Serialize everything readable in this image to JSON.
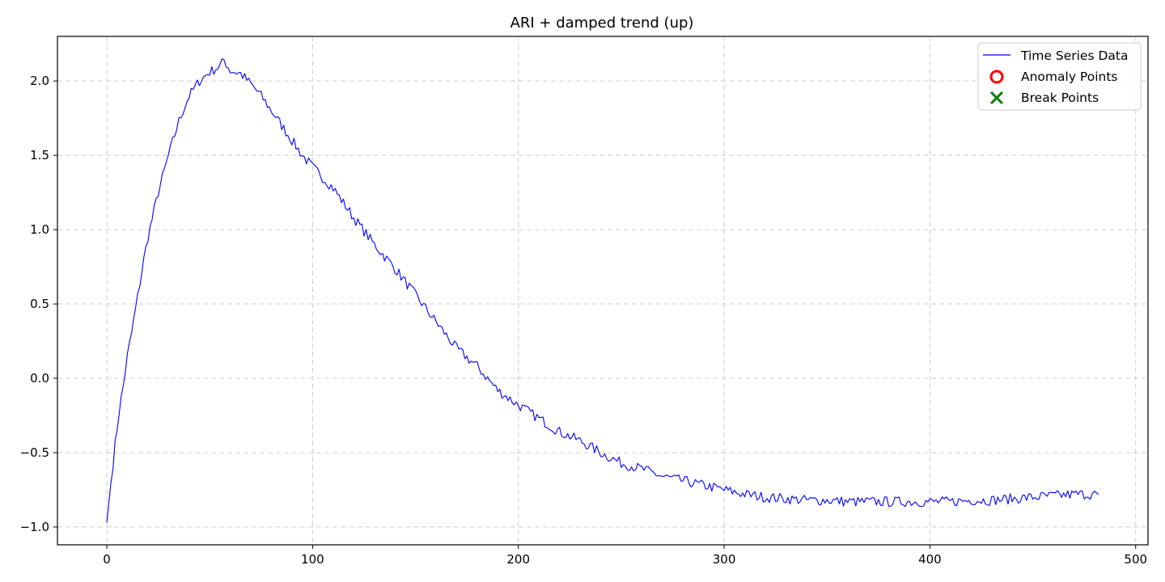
{
  "chart_data": {
    "type": "line",
    "title": "ARI + damped trend (up)",
    "xlabel": "",
    "ylabel": "",
    "xlim": [
      -24,
      506
    ],
    "ylim": [
      -1.12,
      2.3
    ],
    "x_ticks": [
      0,
      100,
      200,
      300,
      400,
      500
    ],
    "x_tick_labels": [
      "0",
      "100",
      "200",
      "300",
      "400",
      "500"
    ],
    "y_ticks": [
      -1.0,
      -0.5,
      0.0,
      0.5,
      1.0,
      1.5,
      2.0
    ],
    "y_tick_labels": [
      "−1.0",
      "−0.5",
      "0.0",
      "0.5",
      "1.0",
      "1.5",
      "2.0"
    ],
    "grid": true,
    "legend_position": "top-right",
    "series": [
      {
        "name": "Time Series Data",
        "color": "#0000ff",
        "x": [
          0,
          2,
          4,
          6,
          8,
          10,
          12,
          15,
          18,
          20,
          25,
          30,
          35,
          40,
          45,
          50,
          55,
          57,
          60,
          65,
          70,
          75,
          80,
          85,
          90,
          95,
          100,
          110,
          120,
          130,
          140,
          150,
          160,
          170,
          180,
          190,
          200,
          210,
          220,
          230,
          240,
          250,
          260,
          270,
          280,
          290,
          300,
          310,
          320,
          330,
          340,
          350,
          360,
          370,
          380,
          390,
          400,
          410,
          420,
          430,
          440,
          450,
          460,
          470,
          482
        ],
        "values": [
          -0.97,
          -0.7,
          -0.45,
          -0.22,
          -0.05,
          0.15,
          0.3,
          0.55,
          0.8,
          0.95,
          1.25,
          1.5,
          1.73,
          1.9,
          2.0,
          2.06,
          2.1,
          2.14,
          2.07,
          2.05,
          1.98,
          1.9,
          1.8,
          1.7,
          1.6,
          1.5,
          1.42,
          1.28,
          1.08,
          0.9,
          0.74,
          0.56,
          0.38,
          0.2,
          0.08,
          -0.08,
          -0.18,
          -0.27,
          -0.36,
          -0.42,
          -0.5,
          -0.57,
          -0.61,
          -0.66,
          -0.69,
          -0.72,
          -0.75,
          -0.78,
          -0.8,
          -0.81,
          -0.82,
          -0.82,
          -0.83,
          -0.83,
          -0.83,
          -0.83,
          -0.83,
          -0.83,
          -0.82,
          -0.82,
          -0.81,
          -0.8,
          -0.79,
          -0.78,
          -0.78
        ]
      }
    ],
    "legend": [
      {
        "label": "Time Series Data",
        "marker": "line",
        "color": "#0000ff"
      },
      {
        "label": "Anomaly Points",
        "marker": "circle",
        "color": "#ff0000"
      },
      {
        "label": "Break Points",
        "marker": "x",
        "color": "#008000"
      }
    ]
  }
}
